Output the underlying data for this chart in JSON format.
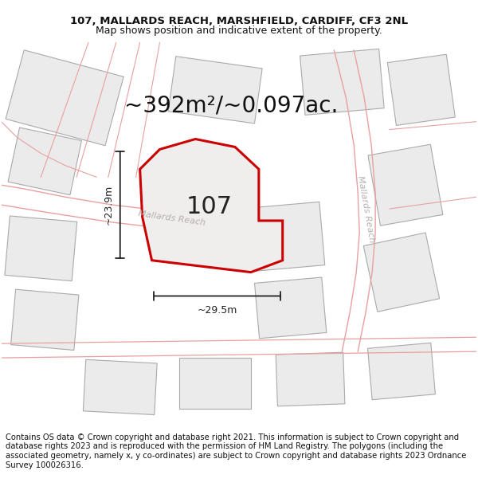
{
  "title_line1": "107, MALLARDS REACH, MARSHFIELD, CARDIFF, CF3 2NL",
  "title_line2": "Map shows position and indicative extent of the property.",
  "area_text": "~392m²/~0.097ac.",
  "label_107": "107",
  "dim_width": "~29.5m",
  "dim_height": "~23.9m",
  "road_label_left": "Mallards Reach",
  "road_label_right": "Mallards Reach",
  "footer_text": "Contains OS data © Crown copyright and database right 2021. This information is subject to Crown copyright and database rights 2023 and is reproduced with the permission of HM Land Registry. The polygons (including the associated geometry, namely x, y co-ordinates) are subject to Crown copyright and database rights 2023 Ordnance Survey 100026316.",
  "map_bg": "#ffffff",
  "plot_fill": "#f0eded",
  "plot_edge": "#cc0000",
  "road_line_color": "#e8a0a0",
  "neighbor_fill": "#ebebeb",
  "neighbor_edge": "#aaaaaa",
  "title_fontsize": 9.5,
  "subtitle_fontsize": 9.0,
  "area_fontsize": 20,
  "label_fontsize": 22,
  "footer_fontsize": 7.2,
  "road_label_color": "#b8b0b0",
  "dim_line_color": "#111111",
  "label_color": "#222222"
}
